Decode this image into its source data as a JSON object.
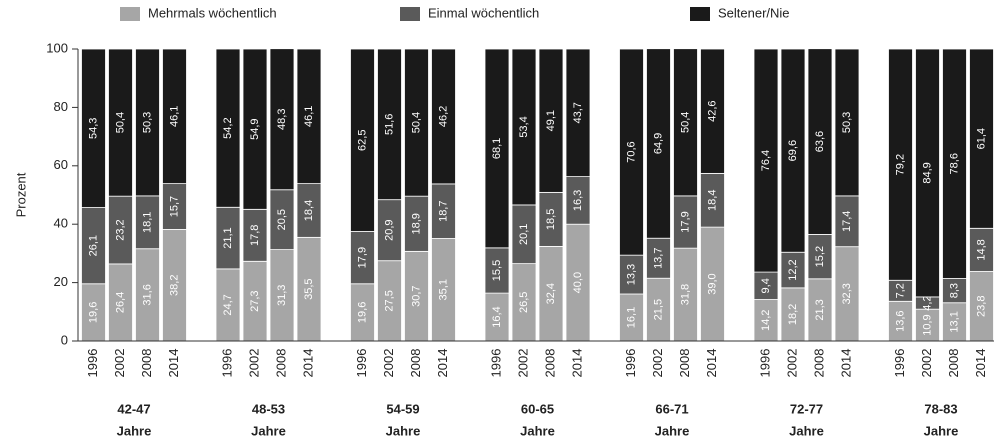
{
  "chart_data": {
    "type": "stacked-bar",
    "ylabel": "Prozent",
    "ylim": [
      0,
      100
    ],
    "yticks": [
      0,
      20,
      40,
      60,
      80,
      100
    ],
    "categories": [
      "1996",
      "2002",
      "2008",
      "2014",
      "1996",
      "2002",
      "2008",
      "2014",
      "1996",
      "2002",
      "2008",
      "2014",
      "1996",
      "2002",
      "2008",
      "2014",
      "1996",
      "2002",
      "2008",
      "2014",
      "1996",
      "2002",
      "2008",
      "2014",
      "1996",
      "2002",
      "2008",
      "2014"
    ],
    "groups": [
      {
        "label": "42-47",
        "sublabel": "Jahre"
      },
      {
        "label": "48-53",
        "sublabel": "Jahre"
      },
      {
        "label": "54-59",
        "sublabel": "Jahre"
      },
      {
        "label": "60-65",
        "sublabel": "Jahre"
      },
      {
        "label": "66-71",
        "sublabel": "Jahre"
      },
      {
        "label": "72-77",
        "sublabel": "Jahre"
      },
      {
        "label": "78-83",
        "sublabel": "Jahre"
      }
    ],
    "series": [
      {
        "name": "Mehrmals wöchentlich",
        "color": "#a6a6a6",
        "values": [
          19.6,
          26.4,
          31.6,
          38.2,
          24.7,
          27.3,
          31.3,
          35.5,
          19.6,
          27.5,
          30.7,
          35.1,
          16.4,
          26.5,
          32.4,
          40.0,
          16.1,
          21.5,
          31.8,
          39.0,
          14.2,
          18.2,
          21.3,
          32.3,
          13.6,
          10.9,
          13.1,
          23.8
        ],
        "value_labels": [
          "19,6",
          "26,4",
          "31,6",
          "38,2",
          "24,7",
          "27,3",
          "31,3",
          "35,5",
          "19,6",
          "27,5",
          "30,7",
          "35,1",
          "16,4",
          "26,5",
          "32,4",
          "40,0",
          "16,1",
          "21,5",
          "31,8",
          "39,0",
          "14,2",
          "18,2",
          "21,3",
          "32,3",
          "13,6",
          "10,9",
          "13,1",
          "23,8"
        ]
      },
      {
        "name": "Einmal wöchentlich",
        "color": "#5a5a5a",
        "values": [
          26.1,
          23.2,
          18.1,
          15.7,
          21.1,
          17.8,
          20.5,
          18.4,
          17.9,
          20.9,
          18.9,
          18.7,
          15.5,
          20.1,
          18.5,
          16.3,
          13.3,
          13.7,
          17.9,
          18.4,
          9.4,
          12.2,
          15.2,
          17.4,
          7.2,
          4.2,
          8.3,
          14.8
        ],
        "value_labels": [
          "26,1",
          "23,2",
          "18,1",
          "15,7",
          "21,1",
          "17,8",
          "20,5",
          "18,4",
          "17,9",
          "20,9",
          "18,9",
          "18,7",
          "15,5",
          "20,1",
          "18,5",
          "16,3",
          "13,3",
          "13,7",
          "17,9",
          "18,4",
          "9,4",
          "12,2",
          "15,2",
          "17,4",
          "7,2",
          "4,2",
          "8,3",
          "14,8"
        ]
      },
      {
        "name": "Seltener/Nie",
        "color": "#1a1a1a",
        "values": [
          54.3,
          50.4,
          50.3,
          46.1,
          54.2,
          54.9,
          48.3,
          46.1,
          62.5,
          51.6,
          50.4,
          46.2,
          68.1,
          53.4,
          49.1,
          43.7,
          70.6,
          64.9,
          50.4,
          42.6,
          76.4,
          69.6,
          63.6,
          50.3,
          79.2,
          84.9,
          78.6,
          61.4
        ],
        "value_labels": [
          "54,3",
          "50,4",
          "50,3",
          "46,1",
          "54,2",
          "54,9",
          "48,3",
          "46,1",
          "62,5",
          "51,6",
          "50,4",
          "46,2",
          "68,1",
          "53,4",
          "49,1",
          "43,7",
          "70,6",
          "64,9",
          "50,4",
          "42,6",
          "76,4",
          "69,6",
          "63,6",
          "50,3",
          "79,2",
          "84,9",
          "78,6",
          "61,4"
        ]
      }
    ]
  }
}
